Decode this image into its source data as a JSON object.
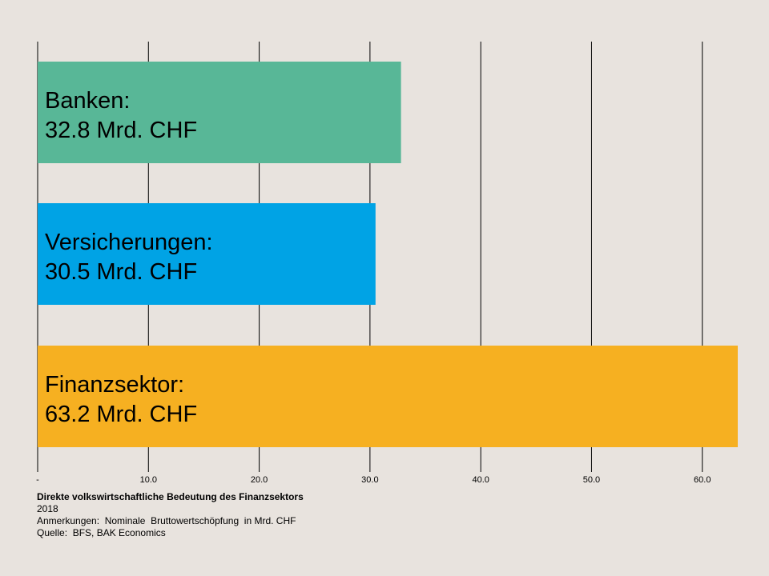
{
  "chart_data": {
    "type": "bar",
    "orientation": "horizontal",
    "title": "Direkte volkswirtschaftliche Bedeutung des Finanzsektors",
    "subtitle": "2018",
    "note": "Anmerkungen:  Nominale  Bruttowertschöpfung  in Mrd. CHF",
    "source": "Quelle:  BFS, BAK Economics",
    "categories": [
      "Banken",
      "Versicherungen",
      "Finanzsektor"
    ],
    "values": [
      32.8,
      30.5,
      63.2
    ],
    "bar_labels": [
      [
        "Banken:",
        "32.8 Mrd. CHF"
      ],
      [
        "Versicherungen:",
        "30.5 Mrd. CHF"
      ],
      [
        "Finanzsektor:",
        "63.2 Mrd. CHF"
      ]
    ],
    "colors": [
      "#58b797",
      "#00a3e5",
      "#f6b021"
    ],
    "xlim": [
      0,
      63.2
    ],
    "x_ticks": [
      0,
      10,
      20,
      30,
      40,
      50,
      60
    ],
    "x_tick_labels": [
      "-",
      "10.0",
      "20.0",
      "30.0",
      "40.0",
      "50.0",
      "60.0"
    ],
    "grid": true,
    "legend": "none"
  }
}
